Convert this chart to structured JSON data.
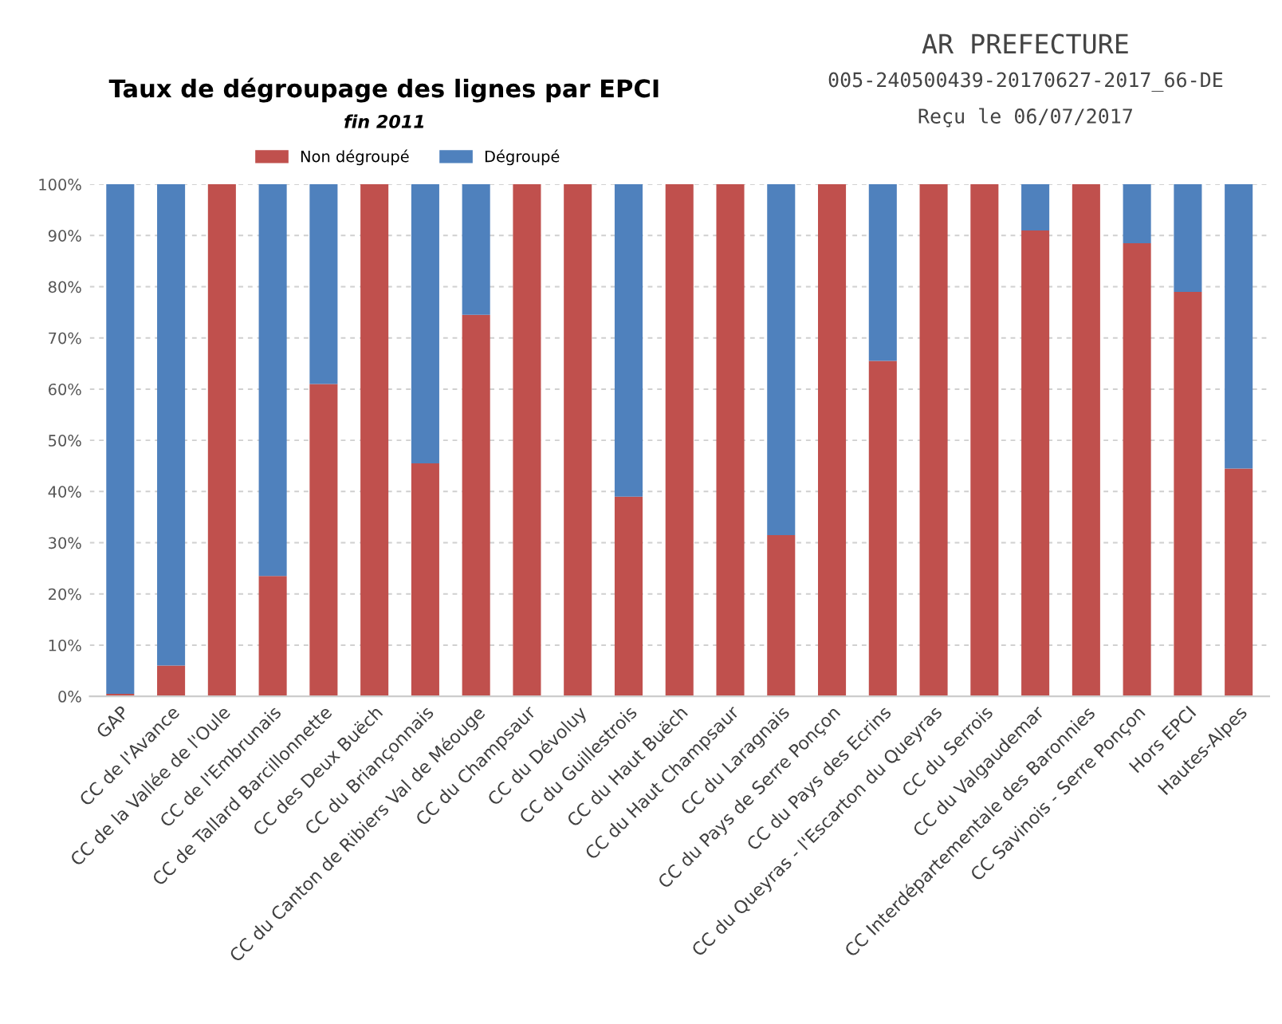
{
  "chart_data": {
    "type": "bar",
    "stacked": true,
    "title": "Taux de dégroupage des lignes par EPCI",
    "subtitle": "fin 2011",
    "categories": [
      "GAP",
      "CC de l'Avance",
      "CC de la Vallée de l'Oule",
      "CC de l'Embrunais",
      "CC de Tallard Barcillonnette",
      "CC des Deux Buëch",
      "CC du Briançonnais",
      "CC du Canton de Ribiers Val de Méouge",
      "CC du Champsaur",
      "CC du Dévoluy",
      "CC du Guillestrois",
      "CC du Haut Buëch",
      "CC du Haut Champsaur",
      "CC du Laragnais",
      "CC du Pays de Serre Ponçon",
      "CC du Pays des Ecrins",
      "CC du Queyras - l'Escarton du Queyras",
      "CC du Serrois",
      "CC du Valgaudemar",
      "CC Interdépartementale des Baronnies",
      "CC Savinois - Serre Ponçon",
      "Hors EPCI",
      "Hautes-Alpes"
    ],
    "series": [
      {
        "name": "Non dégroupé",
        "color": "#c0504d",
        "values": [
          0.5,
          6,
          100,
          23.5,
          61,
          100,
          45.5,
          74.5,
          100,
          100,
          39,
          100,
          100,
          31.5,
          100,
          65.5,
          100,
          100,
          91,
          100,
          88.5,
          79,
          44.5
        ]
      },
      {
        "name": "Dégroupé",
        "color": "#4f81bd",
        "values": [
          99.5,
          94,
          0,
          76.5,
          39,
          0,
          54.5,
          25.5,
          0,
          0,
          61,
          0,
          0,
          68.5,
          0,
          34.5,
          0,
          0,
          9,
          0,
          11.5,
          21,
          55.5
        ]
      }
    ],
    "ylim": [
      0,
      100
    ],
    "yticks": [
      {
        "value": 0,
        "label": "0%"
      },
      {
        "value": 10,
        "label": "10%"
      },
      {
        "value": 20,
        "label": "20%"
      },
      {
        "value": 30,
        "label": "30%"
      },
      {
        "value": 40,
        "label": "40%"
      },
      {
        "value": 50,
        "label": "50%"
      },
      {
        "value": 60,
        "label": "60%"
      },
      {
        "value": 70,
        "label": "70%"
      },
      {
        "value": 80,
        "label": "80%"
      },
      {
        "value": 90,
        "label": "90%"
      },
      {
        "value": 100,
        "label": "100%"
      }
    ],
    "grid": "y",
    "legend": "top",
    "annotations": [
      "AR PREFECTURE",
      "005-240500439-20170627-2017_66-DE",
      "Reçu le 06/07/2017"
    ]
  }
}
